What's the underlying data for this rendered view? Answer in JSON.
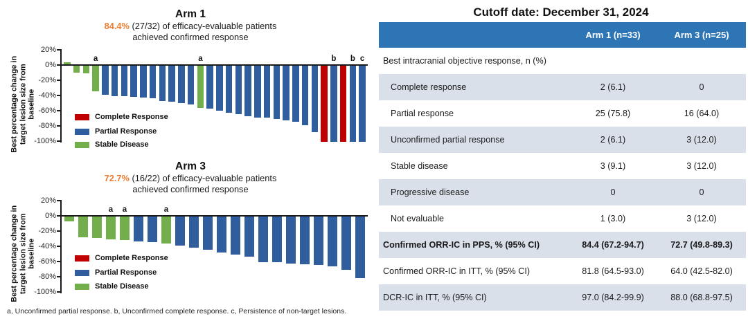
{
  "colors": {
    "complete_response": "#C00000",
    "partial_response": "#2F5D9D",
    "stable_disease": "#72AE4B",
    "highlight_orange": "#ED7D31",
    "table_header_bg": "#2E75B6",
    "table_row_shaded": "#DAE0EA"
  },
  "footnote": "a, Unconfirmed partial response. b, Unconfirmed complete response. c, Persistence of non-target lesions.",
  "chart_data": [
    {
      "type": "bar",
      "title": "Arm 1",
      "subtitle_highlight": "84.4%",
      "subtitle_line1": "(27/32) of efficacy-evaluable patients",
      "subtitle_line2": "achieved confirmed response",
      "ylabel": "Best percentage change in target lesion size from baseline",
      "ylim": [
        -100,
        20
      ],
      "yticks": [
        "20%",
        "0%",
        "-20%",
        "-40%",
        "-60%",
        "-80%",
        "-100%"
      ],
      "values": [
        4,
        -9,
        -10,
        -34,
        -38,
        -40,
        -40,
        -41,
        -42,
        -43,
        -46,
        -47,
        -49,
        -51,
        -55,
        -56,
        -59,
        -62,
        -64,
        -66,
        -68,
        -68,
        -70,
        -72,
        -74,
        -78,
        -87,
        -100,
        -100,
        -100,
        -100,
        -100
      ],
      "bar_types": [
        "SD",
        "SD",
        "SD",
        "SD",
        "PR",
        "PR",
        "PR",
        "PR",
        "PR",
        "PR",
        "PR",
        "PR",
        "PR",
        "PR",
        "SD",
        "PR",
        "PR",
        "PR",
        "PR",
        "PR",
        "PR",
        "PR",
        "PR",
        "PR",
        "PR",
        "PR",
        "PR",
        "CR",
        "PR",
        "CR",
        "PR",
        "PR"
      ],
      "bar_colors": {
        "CR": "#C00000",
        "PR": "#2F5D9D",
        "SD": "#72AE4B"
      },
      "annotations": [
        {
          "bar_index": 3,
          "label": "a"
        },
        {
          "bar_index": 14,
          "label": "a"
        },
        {
          "bar_index": 28,
          "label": "b"
        },
        {
          "bar_index": 30,
          "label": "b"
        },
        {
          "bar_index": 31,
          "label": "c"
        }
      ],
      "legend": [
        {
          "key": "CR",
          "label": "Complete Response",
          "color": "#C00000"
        },
        {
          "key": "PR",
          "label": "Partial Response",
          "color": "#2F5D9D"
        },
        {
          "key": "SD",
          "label": "Stable Disease",
          "color": "#72AE4B"
        }
      ]
    },
    {
      "type": "bar",
      "title": "Arm 3",
      "subtitle_highlight": "72.7%",
      "subtitle_line1": "(16/22) of efficacy-evaluable patients",
      "subtitle_line2": "achieved confirmed response",
      "ylabel": "Best percentage change in target lesion size from baseline",
      "ylim": [
        -100,
        20
      ],
      "yticks": [
        "20%",
        "0%",
        "-20%",
        "-40%",
        "-60%",
        "-80%",
        "-100%"
      ],
      "values": [
        -6,
        -27,
        -28,
        -30,
        -31,
        -33,
        -34,
        -35,
        -38,
        -41,
        -44,
        -47,
        -50,
        -53,
        -60,
        -60,
        -62,
        -63,
        -64,
        -65,
        -70,
        -81
      ],
      "bar_types": [
        "SD",
        "SD",
        "SD",
        "SD",
        "SD",
        "PR",
        "PR",
        "SD",
        "PR",
        "PR",
        "PR",
        "PR",
        "PR",
        "PR",
        "PR",
        "PR",
        "PR",
        "PR",
        "PR",
        "PR",
        "PR",
        "PR"
      ],
      "bar_colors": {
        "CR": "#C00000",
        "PR": "#2F5D9D",
        "SD": "#72AE4B"
      },
      "annotations": [
        {
          "bar_index": 3,
          "label": "a"
        },
        {
          "bar_index": 4,
          "label": "a"
        },
        {
          "bar_index": 7,
          "label": "a"
        }
      ],
      "legend": [
        {
          "key": "CR",
          "label": "Complete Response",
          "color": "#C00000"
        },
        {
          "key": "PR",
          "label": "Partial Response",
          "color": "#2F5D9D"
        },
        {
          "key": "SD",
          "label": "Stable Disease",
          "color": "#72AE4B"
        }
      ]
    }
  ],
  "table": {
    "title": "Cutoff date: December 31, 2024",
    "columns": [
      "",
      "Arm 1 (n=33)",
      "Arm 3 (n=25)"
    ],
    "rows": [
      {
        "label": "Best intracranial objective response, n (%)",
        "arm1": "",
        "arm3": "",
        "style": "section"
      },
      {
        "label": "Complete response",
        "arm1": "2 (6.1)",
        "arm3": "0",
        "style": "indent"
      },
      {
        "label": "Partial response",
        "arm1": "25 (75.8)",
        "arm3": "16 (64.0)",
        "style": "indent"
      },
      {
        "label": "Unconfirmed partial response",
        "arm1": "2 (6.1)",
        "arm3": "3 (12.0)",
        "style": "indent"
      },
      {
        "label": "Stable disease",
        "arm1": "3 (9.1)",
        "arm3": "3 (12.0)",
        "style": "indent"
      },
      {
        "label": "Progressive disease",
        "arm1": "0",
        "arm3": "0",
        "style": "indent"
      },
      {
        "label": "Not evaluable",
        "arm1": "1 (3.0)",
        "arm3": "3 (12.0)",
        "style": "indent"
      },
      {
        "label": "Confirmed ORR-IC in PPS, % (95% CI)",
        "arm1": "84.4 (67.2-94.7)",
        "arm3": "72.7 (49.8-89.3)",
        "style": "bold"
      },
      {
        "label": "Confirmed ORR-IC in ITT, % (95% CI)",
        "arm1": "81.8 (64.5-93.0)",
        "arm3": "64.0 (42.5-82.0)",
        "style": "plain"
      },
      {
        "label": "DCR-IC in ITT, % (95% CI)",
        "arm1": "97.0 (84.2-99.9)",
        "arm3": "88.0 (68.8-97.5)",
        "style": "plain"
      }
    ]
  }
}
